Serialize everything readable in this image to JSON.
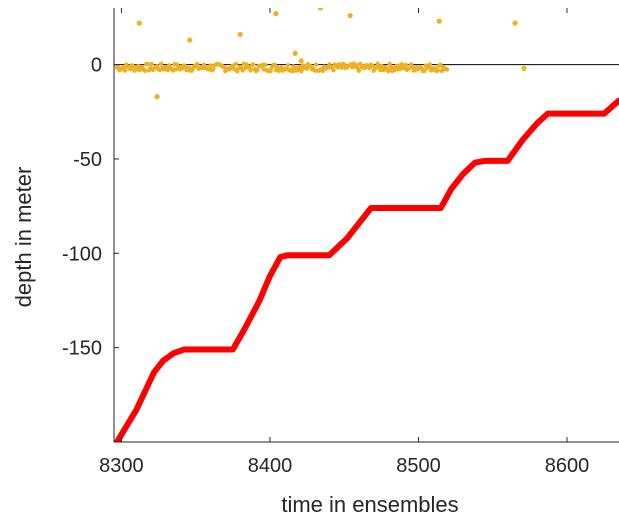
{
  "chart_data": {
    "type": "scatter",
    "title": "",
    "xlabel": "time in ensembles",
    "ylabel": "depth in meter",
    "xlim": [
      8295,
      8635
    ],
    "ylim": [
      -200,
      30
    ],
    "x_ticks": [
      8300,
      8400,
      8500,
      8600
    ],
    "y_ticks": [
      0,
      -50,
      -100,
      -150
    ],
    "grid": false,
    "legend": "none",
    "reference_line": {
      "y": 0,
      "x_range": [
        8295,
        8635
      ],
      "color": "#000000"
    },
    "series": [
      {
        "color": "#EDB120",
        "kind": "scatter",
        "points": [
          [
            8312,
            22
          ],
          [
            8324,
            -17
          ],
          [
            8346,
            13
          ],
          [
            8380,
            16
          ],
          [
            8404,
            27
          ],
          [
            8417,
            6
          ],
          [
            8421,
            2
          ],
          [
            8434,
            30
          ],
          [
            8454,
            26
          ],
          [
            8514,
            23
          ],
          [
            8565,
            22
          ],
          [
            8571,
            -2
          ]
        ],
        "band": {
          "x_range": [
            8297,
            8520
          ],
          "y_center": -1.5,
          "y_spread": 2
        }
      },
      {
        "color": "#FF0000",
        "kind": "line",
        "points": [
          [
            8297,
            -200
          ],
          [
            8310,
            -183
          ],
          [
            8322,
            -163
          ],
          [
            8328,
            -157
          ],
          [
            8335,
            -153
          ],
          [
            8342,
            -151
          ],
          [
            8375,
            -151
          ],
          [
            8383,
            -140
          ],
          [
            8393,
            -125
          ],
          [
            8400,
            -112
          ],
          [
            8407,
            -102
          ],
          [
            8412,
            -101
          ],
          [
            8440,
            -101
          ],
          [
            8452,
            -92
          ],
          [
            8462,
            -82
          ],
          [
            8468,
            -76
          ],
          [
            8515,
            -76
          ],
          [
            8522,
            -66
          ],
          [
            8530,
            -58
          ],
          [
            8538,
            -52
          ],
          [
            8545,
            -51
          ],
          [
            8560,
            -51
          ],
          [
            8570,
            -40
          ],
          [
            8580,
            -31
          ],
          [
            8587,
            -26
          ],
          [
            8625,
            -26
          ],
          [
            8635,
            -19
          ]
        ]
      }
    ]
  }
}
